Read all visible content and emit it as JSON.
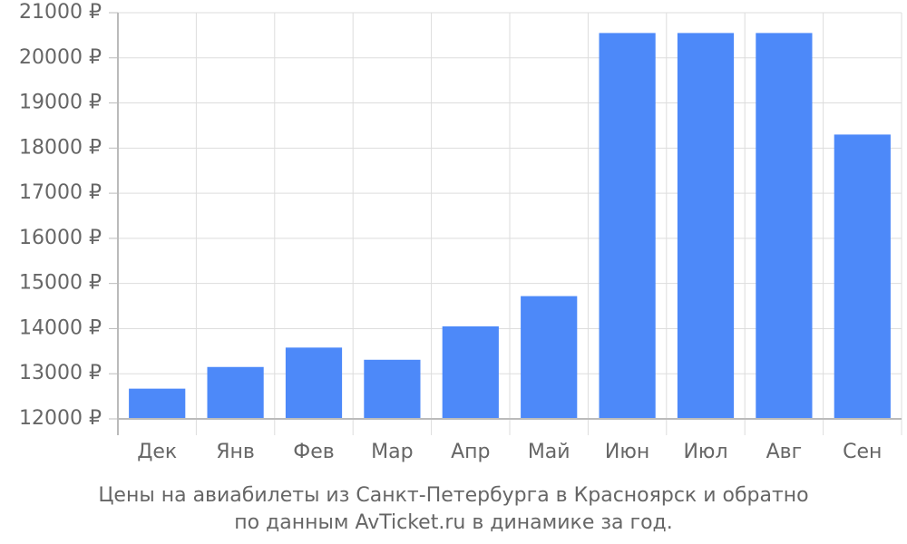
{
  "chart_data": {
    "type": "bar",
    "categories": [
      "Дек",
      "Янв",
      "Фев",
      "Мар",
      "Апр",
      "Май",
      "Июн",
      "Июл",
      "Авг",
      "Сен"
    ],
    "values": [
      12670,
      13150,
      13580,
      13310,
      14050,
      14720,
      20550,
      20550,
      20550,
      18300
    ],
    "ylim": [
      12000,
      21000
    ],
    "ytick_step": 1000,
    "ytick_suffix": " ₽",
    "y_ticks": [
      "12000 ₽",
      "13000 ₽",
      "14000 ₽",
      "15000 ₽",
      "16000 ₽",
      "17000 ₽",
      "18000 ₽",
      "19000 ₽",
      "20000 ₽",
      "21000 ₽"
    ],
    "grid": true,
    "bar_color": "#4d89f9",
    "grid_color": "#dddddd",
    "axis_color": "#bbbbbb"
  },
  "caption": {
    "line1": "Цены на авиабилеты из Санкт-Петербурга в Красноярск и обратно",
    "line2": "по данным AvTicket.ru в динамике за год."
  }
}
